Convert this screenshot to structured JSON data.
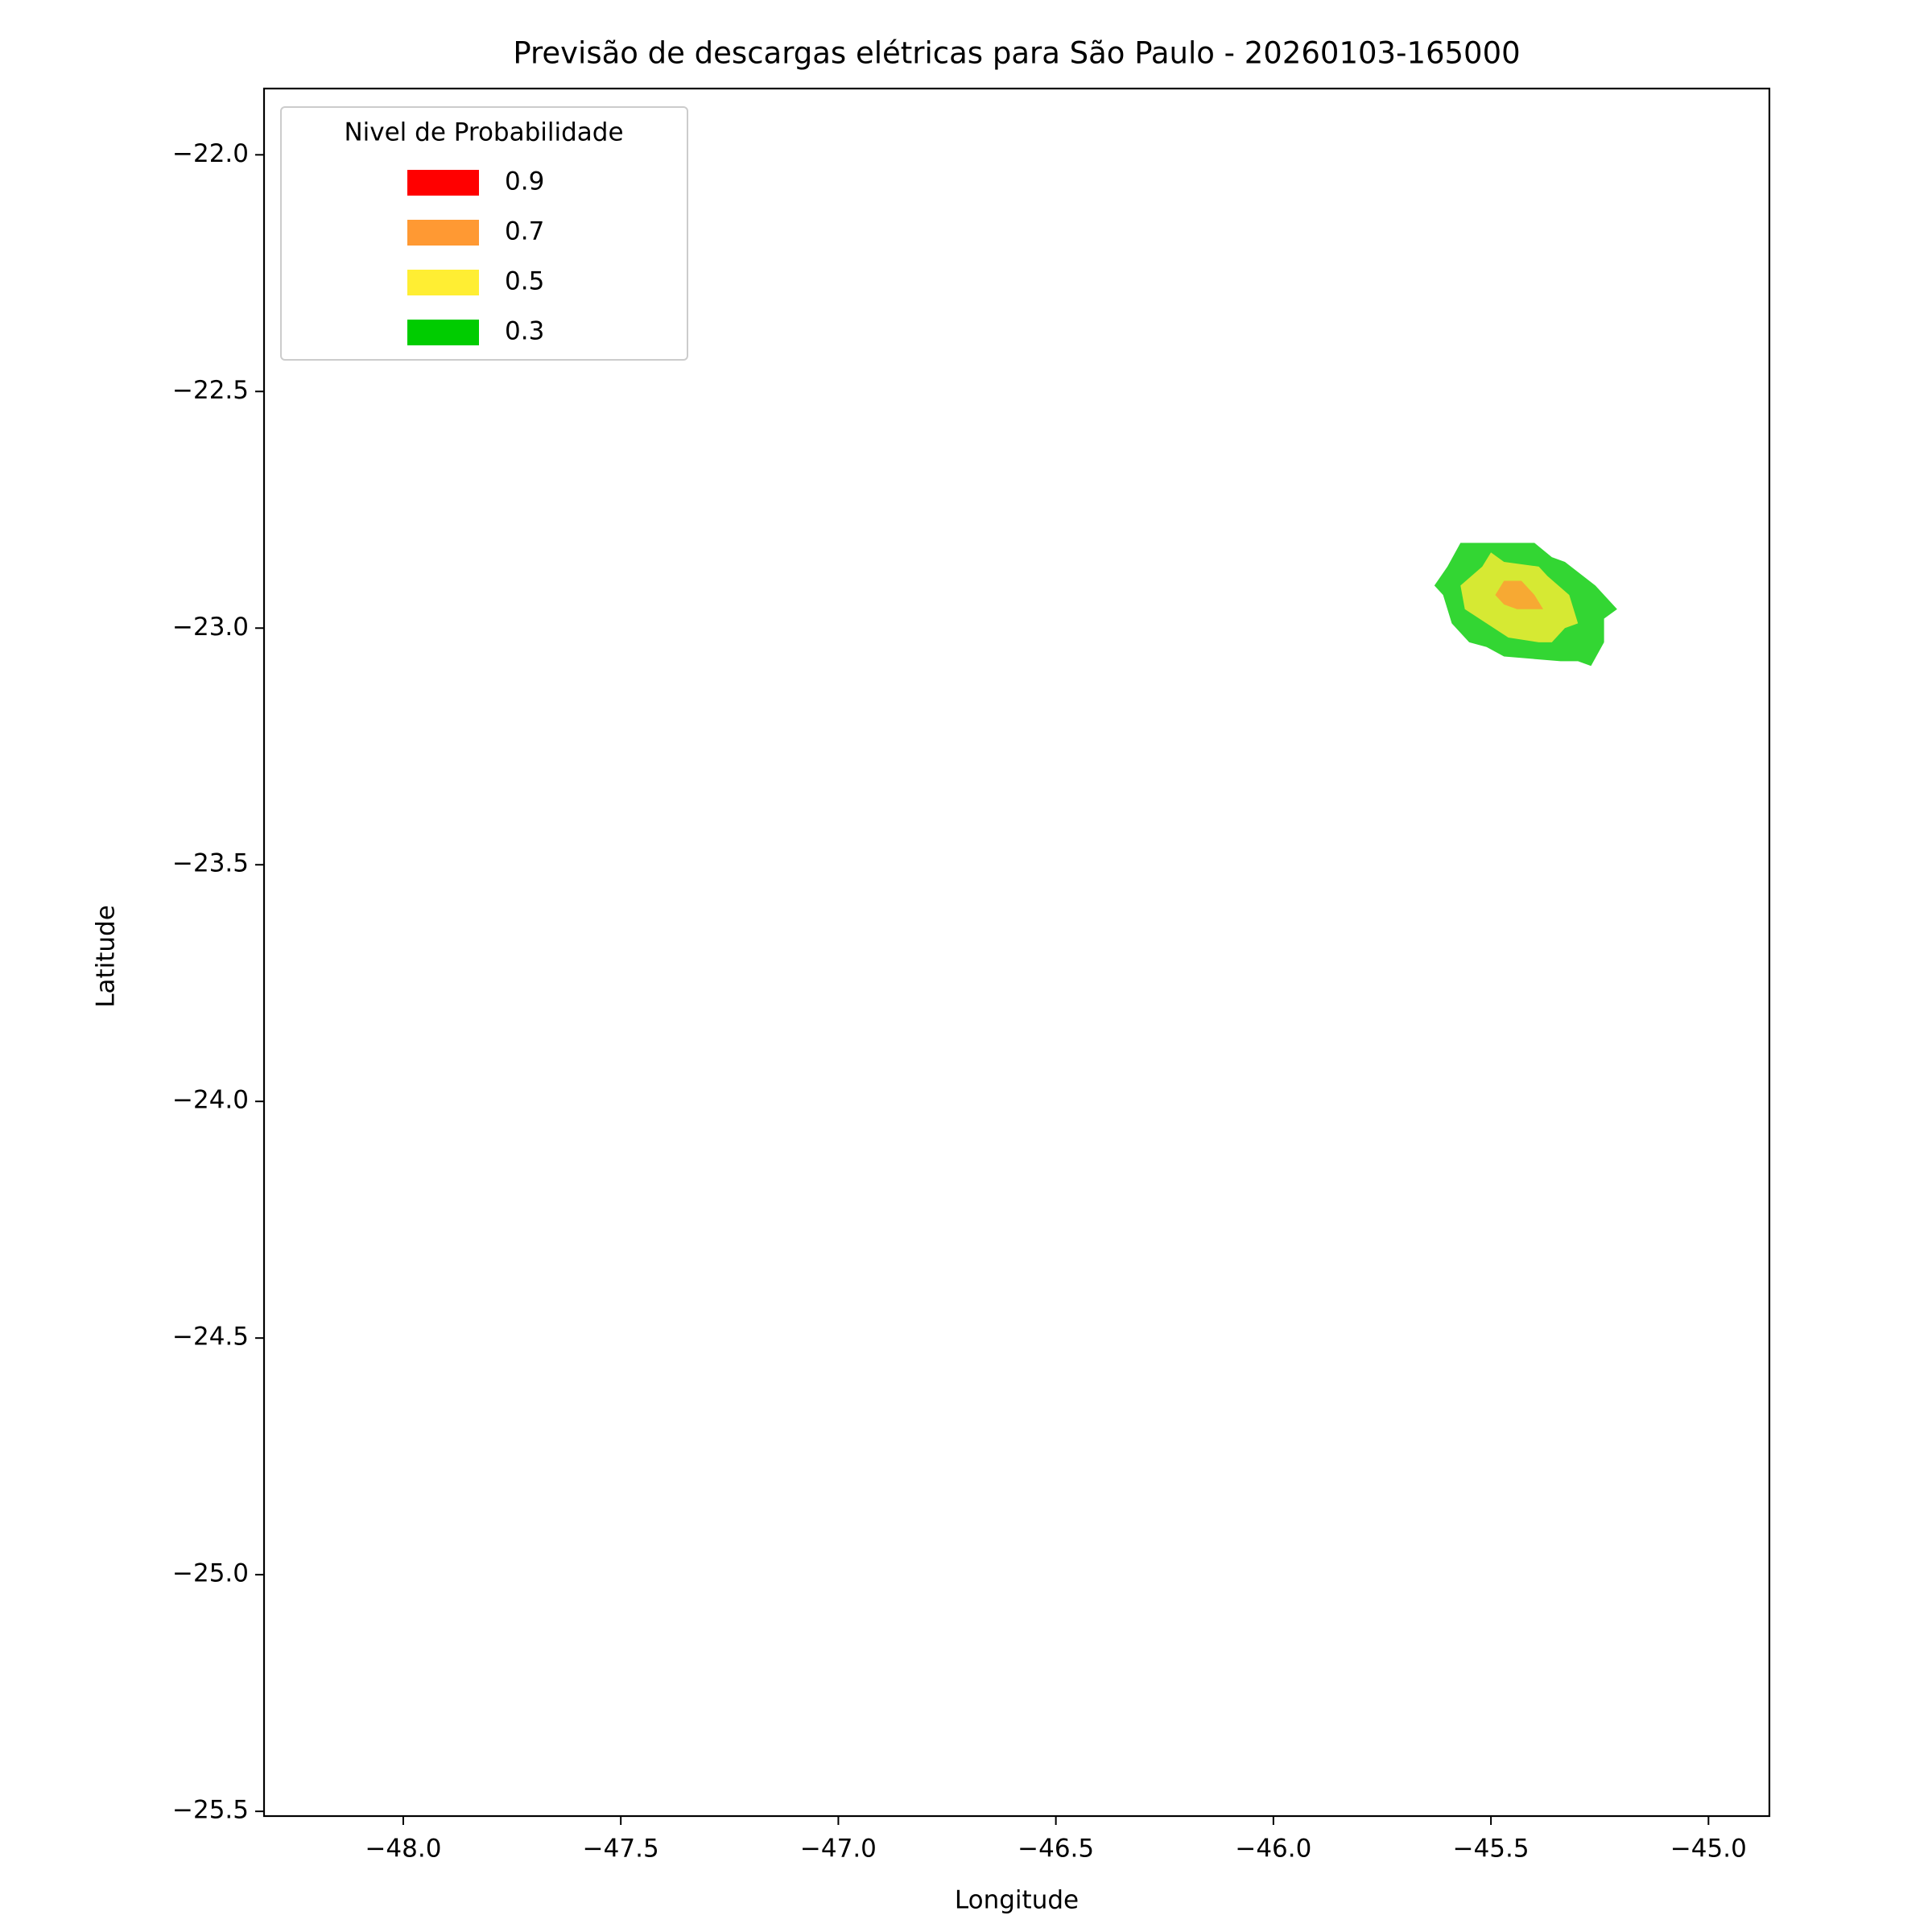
{
  "chart_data": {
    "type": "contour",
    "title": "Previsão de descargas elétricas para São Paulo - 20260103-165000",
    "xlabel": "Longitude",
    "ylabel": "Latitude",
    "legend_title": "Nivel de Probabilidade",
    "legend": "upper left",
    "fill_alpha": 0.8,
    "xlim": [
      -48.32,
      -44.86
    ],
    "ylim": [
      -25.51,
      -21.86
    ],
    "xticks": [
      {
        "value": -48.0,
        "label": "−48.0"
      },
      {
        "value": -47.5,
        "label": "−47.5"
      },
      {
        "value": -47.0,
        "label": "−47.0"
      },
      {
        "value": -46.5,
        "label": "−46.5"
      },
      {
        "value": -46.0,
        "label": "−46.0"
      },
      {
        "value": -45.5,
        "label": "−45.5"
      },
      {
        "value": -45.0,
        "label": "−45.0"
      }
    ],
    "yticks": [
      {
        "value": -22.0,
        "label": "−22.0"
      },
      {
        "value": -22.5,
        "label": "−22.5"
      },
      {
        "value": -23.0,
        "label": "−23.0"
      },
      {
        "value": -23.5,
        "label": "−23.5"
      },
      {
        "value": -24.0,
        "label": "−24.0"
      },
      {
        "value": -24.5,
        "label": "−24.5"
      },
      {
        "value": -25.0,
        "label": "−25.0"
      },
      {
        "value": -25.5,
        "label": "−25.5"
      }
    ],
    "series": [
      {
        "name": "0.9",
        "color": "#ff0000"
      },
      {
        "name": "0.7",
        "color": "#ff9933",
        "x": [
          -45.49,
          -45.47,
          -45.43,
          -45.4,
          -45.38,
          -45.44,
          -45.47
        ],
        "y": [
          -22.93,
          -22.9,
          -22.9,
          -22.93,
          -22.96,
          -22.96,
          -22.95
        ]
      },
      {
        "name": "0.5",
        "color": "#ffee33",
        "x": [
          -45.57,
          -45.52,
          -45.5,
          -45.47,
          -45.39,
          -45.37,
          -45.32,
          -45.3,
          -45.33,
          -45.36,
          -45.39,
          -45.46,
          -45.51,
          -45.56
        ],
        "y": [
          -22.91,
          -22.87,
          -22.84,
          -22.86,
          -22.87,
          -22.89,
          -22.93,
          -22.99,
          -23.0,
          -23.03,
          -23.03,
          -23.02,
          -22.99,
          -22.96
        ]
      },
      {
        "name": "0.3",
        "color": "#00cc00",
        "x": [
          -45.57,
          -45.4,
          -45.36,
          -45.33,
          -45.26,
          -45.21,
          -45.24,
          -45.24,
          -45.27,
          -45.3,
          -45.34,
          -45.47,
          -45.51,
          -45.55,
          -45.59,
          -45.61,
          -45.63,
          -45.6
        ],
        "y": [
          -22.82,
          -22.82,
          -22.85,
          -22.86,
          -22.91,
          -22.96,
          -22.98,
          -23.03,
          -23.08,
          -23.07,
          -23.07,
          -23.06,
          -23.04,
          -23.03,
          -22.99,
          -22.93,
          -22.91,
          -22.87
        ]
      }
    ]
  }
}
